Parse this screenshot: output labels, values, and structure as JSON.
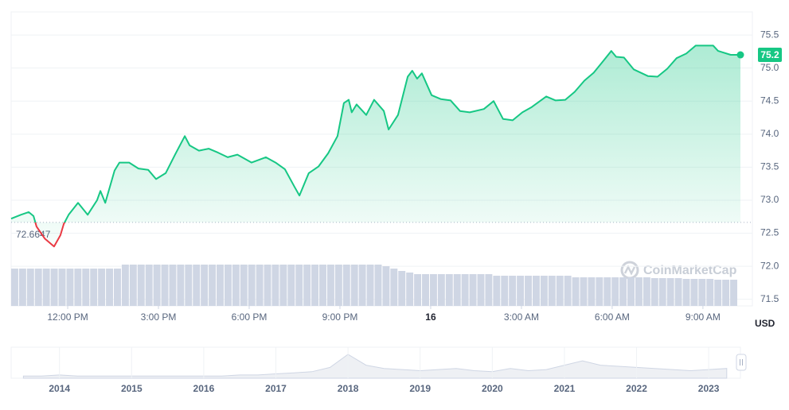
{
  "chart_data": {
    "type": "line",
    "x": [
      10.13,
      10.45,
      10.71,
      10.87,
      10.97,
      11.24,
      11.55,
      11.76,
      11.87,
      12.03,
      12.34,
      12.66,
      12.97,
      13.08,
      13.24,
      13.55,
      13.71,
      14.03,
      14.34,
      14.66,
      14.92,
      15.24,
      15.55,
      15.87,
      16.03,
      16.34,
      16.66,
      16.97,
      17.29,
      17.61,
      18.08,
      18.55,
      18.87,
      19.18,
      19.5,
      19.66,
      19.97,
      20.29,
      20.61,
      20.92,
      21.13,
      21.29,
      21.39,
      21.55,
      21.87,
      22.13,
      22.45,
      22.61,
      22.92,
      23.24,
      23.39,
      23.55,
      23.71,
      24.03,
      24.34,
      24.66,
      24.97,
      25.29,
      25.76,
      26.08,
      26.39,
      26.71,
      27.03,
      27.34,
      27.82,
      28.13,
      28.45,
      28.76,
      29.08,
      29.39,
      29.71,
      29.97,
      30.13,
      30.39,
      30.71,
      31.18,
      31.5,
      31.82,
      32.13,
      32.45,
      32.76,
      33.08,
      33.34,
      33.5,
      33.92,
      34.24
    ],
    "values": [
      72.72,
      72.78,
      72.82,
      72.76,
      72.6,
      72.42,
      72.3,
      72.47,
      72.64,
      72.78,
      72.96,
      72.78,
      73.0,
      73.14,
      72.96,
      73.45,
      73.57,
      73.57,
      73.48,
      73.46,
      73.32,
      73.41,
      73.69,
      73.97,
      73.83,
      73.75,
      73.78,
      73.72,
      73.65,
      73.69,
      73.57,
      73.65,
      73.57,
      73.47,
      73.2,
      73.07,
      73.41,
      73.51,
      73.71,
      73.97,
      74.47,
      74.52,
      74.33,
      74.45,
      74.29,
      74.52,
      74.35,
      74.07,
      74.29,
      74.87,
      74.96,
      74.84,
      74.92,
      74.59,
      74.53,
      74.51,
      74.35,
      74.33,
      74.38,
      74.5,
      74.23,
      74.21,
      74.33,
      74.41,
      74.57,
      74.51,
      74.52,
      74.64,
      74.81,
      74.93,
      75.11,
      75.26,
      75.17,
      75.16,
      74.98,
      74.88,
      74.87,
      74.99,
      75.15,
      75.22,
      75.34,
      75.34,
      75.34,
      75.26,
      75.2,
      75.2
    ],
    "color": "#16c784",
    "negative_color": "#ea3943",
    "baseline": 72.6647,
    "xlim": [
      10.13,
      34.24
    ],
    "xticks": [
      {
        "value": 12,
        "label": "12:00 PM"
      },
      {
        "value": 15,
        "label": "3:00 PM"
      },
      {
        "value": 18,
        "label": "6:00 PM"
      },
      {
        "value": 21,
        "label": "9:00 PM"
      },
      {
        "value": 24,
        "label": "16"
      },
      {
        "value": 27,
        "label": "3:00 AM"
      },
      {
        "value": 30,
        "label": "6:00 AM"
      },
      {
        "value": 33,
        "label": "9:00 AM"
      }
    ],
    "ylim": [
      71.4,
      75.85
    ],
    "yticks": [
      71.5,
      {
        "value": 72,
        "label": "72.0"
      },
      72.5,
      {
        "value": 73,
        "label": "73.0"
      },
      73.5,
      {
        "value": 74,
        "label": "74.0"
      },
      74.5,
      {
        "value": 75,
        "label": "75.0"
      },
      75.5
    ],
    "grid": true,
    "y_unit": "USD",
    "watermark": "CoinMarketCap",
    "volume": {
      "type": "bar",
      "color": "#cfd6e4",
      "values": [
        47,
        47,
        47,
        47,
        47,
        47,
        47,
        47,
        47,
        47,
        47,
        47,
        47,
        47,
        52,
        52,
        52,
        52,
        52,
        52,
        52,
        52,
        52,
        52,
        52,
        52,
        52,
        52,
        52,
        52,
        52,
        52,
        52,
        52,
        52,
        52,
        52,
        52,
        52,
        52,
        52,
        52,
        52,
        52,
        52,
        52,
        52,
        50,
        47,
        44,
        42,
        40,
        40,
        40,
        40,
        40,
        40,
        40,
        40,
        40,
        40,
        38,
        38,
        38,
        38,
        38,
        38,
        38,
        38,
        38,
        38,
        36,
        36,
        36,
        36,
        36,
        36,
        36,
        36,
        36,
        36,
        35,
        35,
        35,
        35,
        34,
        34,
        34,
        34,
        33,
        33,
        33
      ]
    },
    "navigator": {
      "type": "area",
      "color": "#cfd6e4",
      "x": [
        2013.5,
        2013.75,
        2014,
        2014.25,
        2014.5,
        2014.75,
        2015,
        2015.25,
        2015.5,
        2015.75,
        2016,
        2016.25,
        2016.5,
        2016.75,
        2017,
        2017.25,
        2017.5,
        2017.75,
        2018,
        2018.25,
        2018.5,
        2018.75,
        2019,
        2019.25,
        2019.5,
        2019.75,
        2020,
        2020.25,
        2020.5,
        2020.75,
        2021,
        2021.25,
        2021.5,
        2021.75,
        2022,
        2022.25,
        2022.5,
        2022.75,
        2023,
        2023.25
      ],
      "values": [
        2,
        2,
        3,
        2,
        2,
        2,
        2,
        2,
        2,
        2,
        2,
        2,
        3,
        3,
        4,
        5,
        6,
        10,
        22,
        12,
        9,
        8,
        7,
        8,
        9,
        7,
        6,
        9,
        7,
        8,
        12,
        16,
        12,
        11,
        10,
        9,
        8,
        7,
        8,
        9
      ],
      "xlim": [
        2013.33,
        2023.44
      ],
      "xticks": [
        2014,
        2015,
        2016,
        2017,
        2018,
        2019,
        2020,
        2021,
        2022,
        2023
      ]
    }
  }
}
